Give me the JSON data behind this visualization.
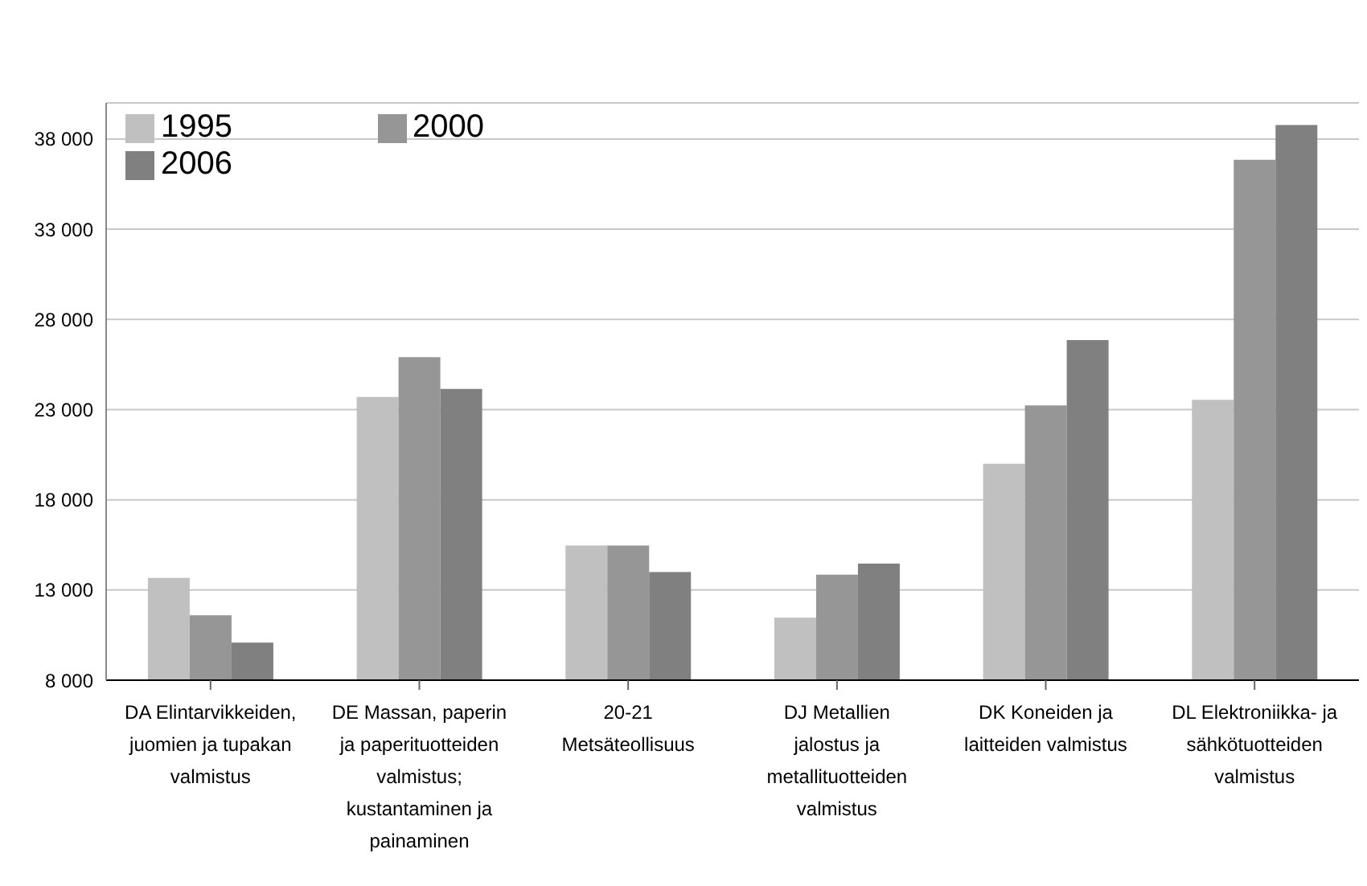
{
  "chart_data": {
    "type": "bar",
    "categories": [
      "DA Elintarvikkeiden, juomien ja tupakan valmistus",
      "DE Massan, paperin ja paperituotteiden valmistus; kustantaminen ja painaminen",
      "20-21 Metsäteollisuus",
      "DJ Metallien jalostus ja metallituotteiden valmistus",
      "DK Koneiden ja laitteiden valmistus",
      "DL Elektroniikka- ja sähkötuotteiden valmistus"
    ],
    "series": [
      {
        "name": "1995",
        "color": "#c0c0c0",
        "values": [
          13670,
          23700,
          15460,
          11460,
          20000,
          23540
        ]
      },
      {
        "name": "2000",
        "color": "#969696",
        "values": [
          11600,
          25900,
          15460,
          13850,
          23230,
          36850
        ]
      },
      {
        "name": "2006",
        "color": "#808080",
        "values": [
          10080,
          24150,
          14000,
          14460,
          26850,
          38770
        ]
      }
    ],
    "ylim": [
      8000,
      40000
    ],
    "yticks": [
      {
        "value": 8000,
        "label": "8 000"
      },
      {
        "value": 13000,
        "label": "13 000"
      },
      {
        "value": 18000,
        "label": "18 000"
      },
      {
        "value": 23000,
        "label": "23 000"
      },
      {
        "value": 28000,
        "label": "28 000"
      },
      {
        "value": 33000,
        "label": "33 000"
      },
      {
        "value": 38000,
        "label": "38 000"
      }
    ],
    "grid": "y",
    "legend": "top left"
  }
}
